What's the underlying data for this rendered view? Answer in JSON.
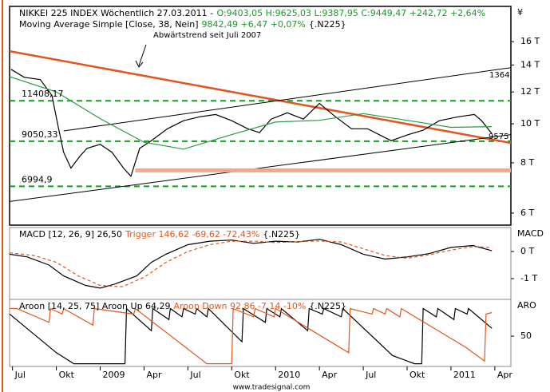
{
  "chart_data": [
    {
      "type": "line",
      "log": true,
      "header": [
        [
          {
            "text": "NIKKEI 225 INDEX Wöchentlich 27.03.2011 -",
            "color": "#000000"
          },
          {
            "text": "O:9403,05 H:9625,03 L:9387,95 C:9449,47 +242,72 +2,64%",
            "color": "#1a9a2a"
          }
        ],
        [
          {
            "text": "Moving Average Simple [Close, 38, Nein]",
            "color": "#000000"
          },
          {
            "text": "9842,49 +6,47 +0,07%",
            "color": "#1a9a2a"
          },
          {
            "text": "{.N225}",
            "color": "#000000"
          }
        ]
      ],
      "ylabel": "¥",
      "xlim": [
        -0.2,
        34.1
      ],
      "ylim": [
        5600,
        18200
      ],
      "yticks": [
        {
          "value": 16000,
          "label": "16 T"
        },
        {
          "value": 14000,
          "label": "14 T"
        },
        {
          "value": 12000,
          "label": "12 T"
        },
        {
          "value": 10000,
          "label": "10 T"
        },
        {
          "value": 8000,
          "label": "8 T"
        },
        {
          "value": 6000,
          "label": "6 T"
        }
      ],
      "series": [
        {
          "color": "#000000",
          "dash": false,
          "x": [
            -0.1,
            0.8,
            1.9,
            2.7,
            3.1,
            3.5,
            4.0,
            4.6,
            5.1,
            6.0,
            6.8,
            7.6,
            8.1,
            8.7,
            9.5,
            10.6,
            11.7,
            12.8,
            13.9,
            15.0,
            16.1,
            16.9,
            17.7,
            18.8,
            19.9,
            21.0,
            22.1,
            23.2,
            24.3,
            25.9,
            27.0,
            28.1,
            29.2,
            30.5,
            31.6,
            32.1,
            32.8
          ],
          "values": [
            13660,
            13050,
            12880,
            11760,
            9950,
            8500,
            7760,
            8300,
            8690,
            8890,
            8500,
            7760,
            7410,
            8690,
            9080,
            9720,
            10180,
            10410,
            10550,
            10180,
            9720,
            9510,
            10270,
            10650,
            10270,
            11240,
            10410,
            9720,
            9720,
            9080,
            9380,
            9640,
            10180,
            10410,
            10550,
            10180,
            9449.47
          ]
        },
        {
          "color": "#2e9a46",
          "dash": false,
          "x": [
            -0.2,
            3,
            6,
            9,
            11.7,
            15,
            18,
            21,
            24,
            27,
            30,
            32.8
          ],
          "values": [
            13100,
            12000,
            10300,
            9000,
            8650,
            9400,
            10100,
            10200,
            10600,
            10200,
            9800,
            9842.49
          ]
        }
      ],
      "lines": [
        {
          "color": "#e0561c",
          "width": 2.5,
          "x": [
            -0.2,
            34.1
          ],
          "values": [
            15150,
            8960
          ]
        },
        {
          "color": "#000000",
          "width": 1,
          "x": [
            3.5,
            34.1
          ],
          "values": [
            9600,
            13790
          ]
        },
        {
          "color": "#000000",
          "width": 1,
          "x": [
            -0.2,
            34.1
          ],
          "values": [
            6410,
            9400
          ]
        },
        {
          "color": "#f4a58a",
          "width": 5,
          "x": [
            8.4,
            34.1
          ],
          "values": [
            7660,
            7660
          ]
        }
      ],
      "levels": [
        {
          "value": 11408.17,
          "label": "11408,17"
        },
        {
          "value": 9050.33,
          "label": "9050,33"
        },
        {
          "value": 6994.9,
          "label": "6994,9"
        }
      ],
      "level_color": "#1a9a2a",
      "annotations": [
        "Abwärtstrend seit Juli 2007",
        "1364",
        "9575"
      ]
    },
    {
      "type": "line",
      "log": false,
      "header": [
        [
          {
            "text": "MACD [12, 26, 9] 26,50",
            "color": "#000000"
          },
          {
            "text": "Trigger 146,62 -69,62 -72,43%",
            "color": "#e0561c"
          },
          {
            "text": "{.N225}",
            "color": "#000000"
          }
        ]
      ],
      "ylabel": "MACD",
      "xlim": [
        -0.2,
        34.1
      ],
      "ylim": [
        -1765,
        824
      ],
      "yticks": [
        {
          "value": 0,
          "label": "0 T"
        },
        {
          "value": -1000,
          "label": "-1 T"
        }
      ],
      "series": [
        {
          "color": "#000000",
          "dash": false,
          "x": [
            -0.2,
            1,
            2.5,
            3.5,
            5,
            6,
            7,
            8.5,
            9.5,
            10.5,
            12,
            13.5,
            15,
            16.5,
            18,
            19.5,
            21,
            22.5,
            24,
            25.5,
            27,
            28.5,
            30,
            31.5,
            32.8
          ],
          "values": [
            -100,
            -200,
            -500,
            -900,
            -1250,
            -1350,
            -1200,
            -900,
            -400,
            -100,
            250,
            380,
            420,
            300,
            380,
            350,
            450,
            250,
            -100,
            -280,
            -200,
            -80,
            150,
            220,
            26.5
          ]
        },
        {
          "color": "#e0561c",
          "dash": true,
          "x": [
            -0.2,
            1.5,
            3,
            4.5,
            6,
            7.5,
            9,
            10.5,
            12,
            13.5,
            15,
            16.5,
            18,
            19.5,
            21,
            22.5,
            24,
            25.5,
            27,
            28.5,
            30,
            31.5,
            32.8
          ],
          "values": [
            -50,
            -150,
            -400,
            -900,
            -1250,
            -1300,
            -950,
            -400,
            0,
            250,
            380,
            380,
            330,
            360,
            390,
            350,
            100,
            -150,
            -250,
            -120,
            50,
            180,
            146.62
          ]
        }
      ]
    },
    {
      "type": "line",
      "log": false,
      "header": [
        [
          {
            "text": "Aroon [14, 25, 75] Aroon Up 64,29",
            "color": "#000000"
          },
          {
            "text": "Aroon Down 92,86 -7,14 -10%",
            "color": "#e0561c"
          },
          {
            "text": "{.N225}",
            "color": "#000000"
          }
        ]
      ],
      "ylabel": "ARO",
      "xlim": [
        -0.2,
        34.1
      ],
      "ylim": [
        -2,
        108
      ],
      "yticks": [
        50
      ],
      "xticks": [
        {
          "value": 0,
          "label": "Jul"
        },
        {
          "value": 3,
          "label": "Okt"
        },
        {
          "value": 6,
          "label": "2009"
        },
        {
          "value": 9,
          "label": "Apr"
        },
        {
          "value": 12,
          "label": "Jul"
        },
        {
          "value": 15,
          "label": "Okt"
        },
        {
          "value": 18,
          "label": "2010"
        },
        {
          "value": 21,
          "label": "Apr"
        },
        {
          "value": 24,
          "label": "Jul"
        },
        {
          "value": 27,
          "label": "Okt"
        },
        {
          "value": 30,
          "label": "2011"
        },
        {
          "value": 33,
          "label": "Apr"
        }
      ],
      "series": [
        {
          "color": "#000000",
          "dash": false,
          "x": [
            -0.2,
            3.0,
            4.2,
            7.7,
            7.8,
            9.5,
            9.6,
            10.7,
            10.8,
            11.6,
            11.7,
            12.5,
            12.6,
            13.3,
            13.4,
            15.7,
            15.8,
            17.3,
            17.4,
            18.3,
            18.4,
            20.2,
            20.3,
            21.2,
            21.3,
            22.5,
            22.6,
            26,
            27.5,
            28,
            28.1,
            29,
            29.1,
            30.2,
            30.3,
            31.1,
            31.2,
            32.8
          ],
          "values": [
            90,
            20,
            0,
            0,
            100,
            60,
            100,
            80,
            100,
            85,
            100,
            90,
            100,
            85,
            100,
            40,
            100,
            75,
            100,
            85,
            100,
            60,
            100,
            90,
            100,
            85,
            100,
            15,
            0,
            0,
            100,
            85,
            100,
            80,
            100,
            90,
            100,
            64.29
          ]
        },
        {
          "color": "#e0561c",
          "dash": false,
          "x": [
            -0.2,
            0.3,
            2.5,
            2.6,
            3.4,
            3.5,
            5.5,
            5.6,
            8.3,
            8.4,
            13.3,
            15,
            15.1,
            16.5,
            16.6,
            17.9,
            18,
            23,
            23.1,
            24.6,
            24.7,
            25.5,
            25.6,
            26.5,
            26.6,
            31,
            32.3,
            32.4,
            32.8
          ],
          "values": [
            100,
            100,
            75,
            100,
            90,
            100,
            70,
            100,
            90,
            100,
            0,
            0,
            100,
            85,
            100,
            85,
            100,
            20,
            100,
            90,
            100,
            90,
            100,
            85,
            100,
            30,
            5,
            90,
            92.86
          ]
        }
      ],
      "footer": "www.tradesignal.com"
    }
  ]
}
